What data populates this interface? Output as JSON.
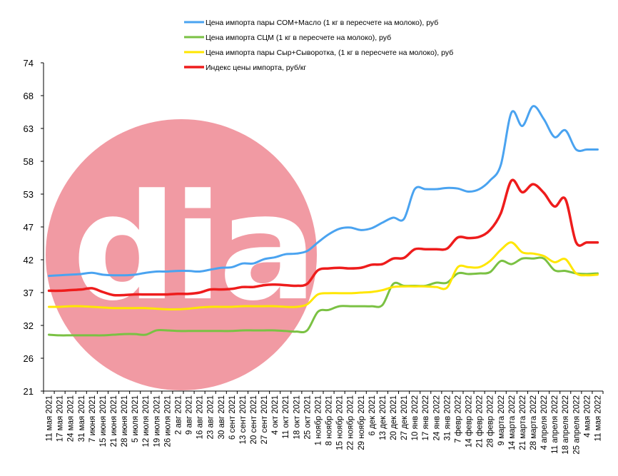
{
  "chart_data": {
    "type": "line",
    "title": "",
    "xlabel": "",
    "ylabel": "",
    "ylim": [
      21,
      74
    ],
    "y_ticks": [
      "21",
      "26",
      "32",
      "37",
      "42",
      "47",
      "53",
      "58",
      "63",
      "68",
      "74"
    ],
    "grid": false,
    "legend_position": "top-center",
    "watermark": "dia",
    "categories": [
      "11 мая 2021",
      "17 мая 2021",
      "24 мая 2021",
      "31 мая 2021",
      "7 июня 2021",
      "15 июня 2021",
      "21 июня 2021",
      "28 июня 2021",
      "5 июля 2021",
      "12 июля 2021",
      "19 июля 2021",
      "26 июля 2021",
      "2 авг 2021",
      "9 авг 2021",
      "16 авг 2021",
      "23 авг 2021",
      "30 авг 2021",
      "6 сент 2021",
      "13 сент 2021",
      "20 сент 2021",
      "27 сент 2021",
      "4 окт 2021",
      "11 окт 2021",
      "18 окт 2021",
      "25 окт 2021",
      "1 ноябр 2021",
      "8 ноябр 2021",
      "15 ноябр 2021",
      "22 ноябр 2021",
      "29 ноябр 2021",
      "6 дек 2021",
      "13 дек 2021",
      "20 дек 2021",
      "27 дек 2021",
      "10 янв 2022",
      "17 янв 2022",
      "24 янв 2022",
      "31 янв 2022",
      "7 февр 2022",
      "14 февр 2022",
      "21 февр 2022",
      "28 февр 2022",
      "9 марта 2022",
      "14 марта 2022",
      "21 марта 2022",
      "28 марта 2022",
      "4 апреля 2022",
      "11 апреля 2022",
      "18 апреля 2022",
      "25 апреля 2022",
      "4 мая 2022",
      "11 мая 2022"
    ],
    "series": [
      {
        "name": "Цена импорта пары СОМ+Масло  (1 кг в пересчете на молоко), руб",
        "color": "#4aa3f0",
        "values": [
          39.6,
          39.7,
          39.8,
          39.9,
          40.1,
          39.8,
          39.7,
          39.7,
          39.8,
          40.1,
          40.3,
          40.3,
          40.4,
          40.4,
          40.3,
          40.6,
          40.9,
          41.0,
          41.6,
          41.6,
          42.3,
          42.6,
          43.1,
          43.2,
          43.6,
          45.0,
          46.3,
          47.2,
          47.4,
          47.0,
          47.3,
          48.2,
          49.0,
          48.8,
          53.6,
          53.6,
          53.6,
          53.8,
          53.7,
          53.2,
          53.6,
          55.0,
          57.5,
          66.0,
          63.8,
          67.0,
          64.9,
          62.0,
          63.1,
          60.0,
          60.0,
          60.0
        ]
      },
      {
        "name": "Цена импорта СЦМ  (1 кг в пересчете на молоко), руб",
        "color": "#7ac143",
        "values": [
          30.1,
          30.0,
          30.0,
          30.0,
          30.0,
          30.0,
          30.1,
          30.2,
          30.2,
          30.1,
          30.8,
          30.8,
          30.7,
          30.7,
          30.7,
          30.7,
          30.7,
          30.7,
          30.8,
          30.8,
          30.8,
          30.8,
          30.7,
          30.6,
          30.8,
          33.8,
          34.1,
          34.7,
          34.7,
          34.7,
          34.7,
          34.9,
          38.3,
          38.0,
          38.0,
          38.0,
          38.5,
          38.5,
          40.0,
          39.9,
          40.0,
          40.2,
          42.0,
          41.5,
          42.4,
          42.4,
          42.4,
          40.5,
          40.4,
          40.0,
          39.9,
          40.0
        ]
      },
      {
        "name": "Цена импорта пары Сыр+Сыворотка,  (1 кг в пересчете на молоко), руб",
        "color": "#ffe600",
        "values": [
          34.6,
          34.6,
          34.7,
          34.7,
          34.6,
          34.5,
          34.4,
          34.4,
          34.4,
          34.4,
          34.3,
          34.2,
          34.2,
          34.3,
          34.5,
          34.6,
          34.6,
          34.6,
          34.7,
          34.7,
          34.7,
          34.7,
          34.6,
          34.6,
          35.0,
          36.6,
          36.8,
          36.8,
          36.8,
          36.9,
          37.0,
          37.3,
          37.8,
          37.9,
          37.9,
          37.9,
          37.8,
          37.7,
          41.0,
          41.0,
          41.0,
          42.0,
          43.8,
          45.0,
          43.4,
          43.2,
          42.8,
          41.8,
          42.3,
          40.0,
          39.7,
          39.8
        ]
      },
      {
        "name": "Индекс цены импорта, руб/кг",
        "color": "#ee1c1c",
        "values": [
          37.2,
          37.2,
          37.3,
          37.4,
          37.6,
          37.0,
          36.5,
          36.5,
          36.6,
          36.6,
          36.6,
          36.6,
          36.7,
          36.7,
          36.9,
          37.4,
          37.4,
          37.5,
          37.8,
          37.8,
          38.1,
          38.2,
          38.1,
          38.0,
          38.3,
          40.5,
          40.8,
          40.9,
          40.8,
          40.9,
          41.4,
          41.5,
          42.4,
          42.5,
          43.9,
          43.9,
          43.9,
          44.0,
          45.8,
          45.7,
          45.9,
          47.0,
          49.7,
          55.0,
          53.1,
          54.4,
          53.0,
          50.8,
          52.0,
          45.0,
          45.0,
          45.0
        ]
      }
    ]
  }
}
